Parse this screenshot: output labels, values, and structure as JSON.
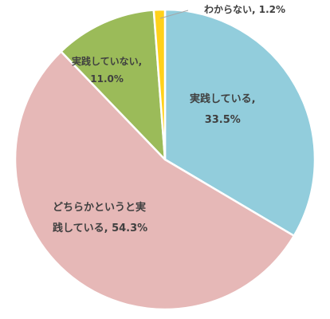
{
  "chart_data": {
    "type": "pie",
    "start_angle_deg": 0,
    "direction": "clockwise",
    "slices": [
      {
        "label": "実践している",
        "value": 33.5,
        "display": "33.5%",
        "color": "#92cddc"
      },
      {
        "label": "どちらかというと実践している",
        "value": 54.3,
        "display": "54.3%",
        "color": "#e6b8b7"
      },
      {
        "label": "実践していない",
        "value": 11.0,
        "display": "11.0%",
        "color": "#9bbb59"
      },
      {
        "label": "わからない",
        "value": 1.2,
        "display": "1.2%",
        "color": "#ffd11a"
      }
    ],
    "legend": "none",
    "data_labels": {
      "practicing": {
        "line1": "実践している,",
        "line2": "33.5%"
      },
      "either": {
        "line1": "どちらかというと実",
        "line2": "践している, 54.3%"
      },
      "not_practicing": {
        "line1": "実践していない,",
        "line2": "11.0%"
      },
      "unknown": {
        "line1": "わからない, 1.2%"
      }
    }
  }
}
